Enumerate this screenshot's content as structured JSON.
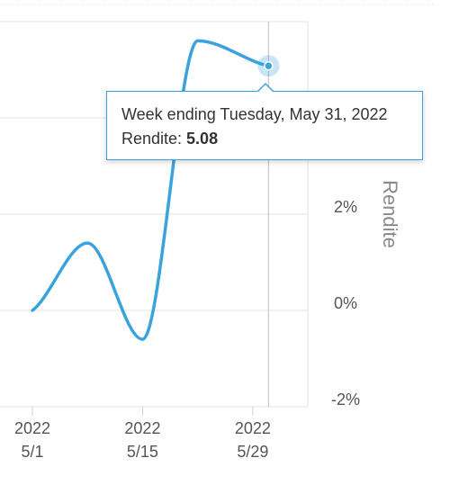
{
  "chart_data": {
    "type": "line",
    "x": [
      "2022-05-01",
      "2022-05-08",
      "2022-05-15",
      "2022-05-22",
      "2022-05-31"
    ],
    "series": [
      {
        "values": [
          0.0,
          1.4,
          -0.6,
          5.6,
          5.08
        ]
      }
    ],
    "ylabel": "Rendite",
    "ylim": [
      -2.2,
      5.9
    ],
    "yticks": [
      "-2%",
      "0%",
      "2%"
    ],
    "xticks": [
      {
        "year": "2022",
        "date": "5/1"
      },
      {
        "year": "2022",
        "date": "5/15"
      },
      {
        "year": "2022",
        "date": "5/29"
      }
    ],
    "grid": true,
    "line_color": "#3aa3dd",
    "highlight_index": 4,
    "tooltip": {
      "title": "Week ending Tuesday, May 31, 2022",
      "label": "Rendite: ",
      "value": "5.08"
    }
  }
}
